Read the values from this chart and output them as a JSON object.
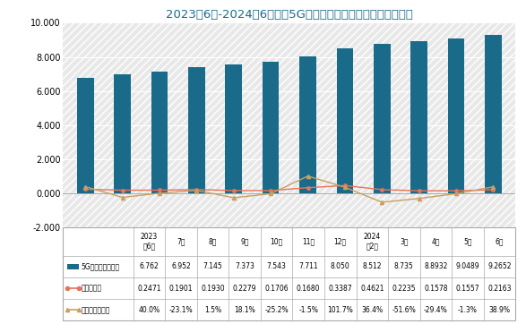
{
  "title": "2023年6月-2024年6月我国5G移动电话用户变化（单位：亿户）",
  "categories": [
    "2023\n年6月",
    "7月",
    "8月",
    "9月",
    "10月",
    "11月",
    "12月",
    "2024\n年2月",
    "3月",
    "4月",
    "5月",
    "6月"
  ],
  "bar_values": [
    6.762,
    6.952,
    7.145,
    7.373,
    7.543,
    7.711,
    8.05,
    8.512,
    8.735,
    8.8932,
    9.0489,
    9.2652
  ],
  "line1_values": [
    0.2471,
    0.1901,
    0.193,
    0.2279,
    0.1706,
    0.168,
    0.3387,
    0.4621,
    0.2235,
    0.1578,
    0.1557,
    0.2163
  ],
  "line2_values": [
    0.4,
    -0.231,
    0.015,
    0.181,
    -0.252,
    -0.015,
    1.017,
    0.364,
    -0.516,
    -0.294,
    -0.013,
    0.389
  ],
  "bar_color": "#1a6b8a",
  "line1_color": "#e8735a",
  "line2_color": "#c8a060",
  "hatch_color": "#d0d0d0",
  "background_color": "#e8e8e8",
  "ylim": [
    -2.0,
    10.0
  ],
  "yticks": [
    -2.0,
    0.0,
    2.0,
    4.0,
    6.0,
    8.0,
    10.0
  ],
  "legend_labels": [
    "5G移动电话用户数",
    "新增用户数",
    "新增用户数环比"
  ],
  "table_header": [
    "2023\n年6月",
    "7月",
    "8月",
    "9月",
    "10月",
    "11月",
    "12月",
    "2024\n年2月",
    "3月",
    "4月",
    "5月",
    "6月"
  ],
  "table_row_labels": [
    "5G移动电话用户数",
    "新增用户数",
    "新增用户数环比"
  ],
  "table_row1": [
    "6.762",
    "6.952",
    "7.145",
    "7.373",
    "7.543",
    "7.711",
    "8.050",
    "8.512",
    "8.735",
    "8.8932",
    "9.0489",
    "9.2652"
  ],
  "table_row2": [
    "0.2471",
    "0.1901",
    "0.1930",
    "0.2279",
    "0.1706",
    "0.1680",
    "0.3387",
    "0.4621",
    "0.2235",
    "0.1578",
    "0.1557",
    "0.2163"
  ],
  "table_row3": [
    "40.0%",
    "-23.1%",
    "1.5%",
    "18.1%",
    "-25.2%",
    "-1.5%",
    "101.7%",
    "36.4%",
    "-51.6%",
    "-29.4%",
    "-1.3%",
    "38.9%"
  ],
  "legend_colors": [
    "#1a6b8a",
    "#e8735a",
    "#c8a060"
  ],
  "title_color": "#1a6b8a",
  "title_fontsize": 9.5
}
